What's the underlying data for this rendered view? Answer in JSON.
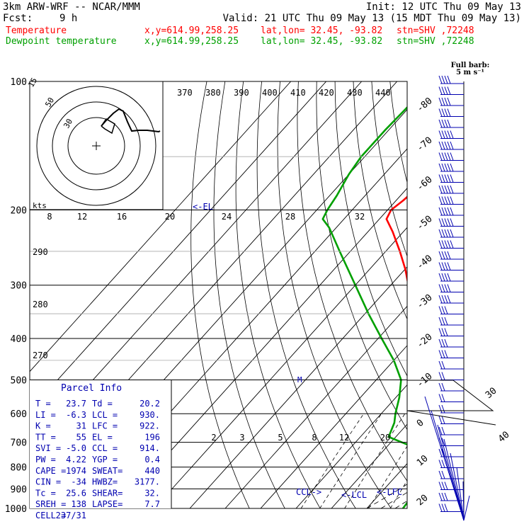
{
  "header": {
    "model": "3km ARW-WRF -- NCAR/MMM",
    "init": "Init: 12 UTC Thu 09 May 13",
    "fcst_label": "Fcst:",
    "fcst_value": "9 h",
    "valid": "Valid: 21 UTC Thu 09 May 13 (15 MDT Thu 09 May 13)",
    "temp_line": {
      "label": "Temperature",
      "xy": "x,y=614.99,258.25",
      "latlon": "lat,lon= 32.45, -93.82",
      "stn": "stn=SHV ,72248"
    },
    "dew_line": {
      "label": "Dewpoint temperature",
      "xy": "x,y=614.99,258.25",
      "latlon": "lat,lon= 32.45, -93.82",
      "stn": "stn=SHV ,72248"
    }
  },
  "colors": {
    "temperature": "#ff0000",
    "dewpoint": "#00a000",
    "blue": "#0000b0",
    "grid": "#000000"
  },
  "chart_data": {
    "type": "line",
    "title": "Skew-T log-P sounding",
    "pressure_levels": [
      100,
      200,
      300,
      400,
      500,
      600,
      700,
      800,
      900,
      1000
    ],
    "isotherm_labels": [
      "-80",
      "-70",
      "-60",
      "-50",
      "-40",
      "-30",
      "-20",
      "-10",
      "0",
      "10",
      "20",
      "30",
      "40"
    ],
    "theta_labels": [
      "370",
      "380",
      "390",
      "400",
      "410",
      "420",
      "430",
      "440"
    ],
    "mixing_ratio_labels": [
      "2",
      "3",
      "5",
      "8",
      "12",
      "20"
    ],
    "dry_adiabat_labels": [
      "290",
      "280",
      "270"
    ],
    "hodograph": {
      "rings": [
        "50",
        "30",
        "15"
      ],
      "kts_label": "kts",
      "speed_labels": [
        "8",
        "12",
        "16",
        "20",
        "24",
        "28",
        "32"
      ]
    },
    "barb_label": "Full barb:",
    "barb_unit": "5 m s⁻¹",
    "annotations": {
      "el": "<-EL",
      "ccl": "CCL->",
      "lcl": "<-LCL",
      "lfc": "<-LFC"
    },
    "series": [
      {
        "name": "Temperature",
        "points": [
          [
            100,
            -60
          ],
          [
            125,
            -58
          ],
          [
            150,
            -57
          ],
          [
            175,
            -57
          ],
          [
            190,
            -58
          ],
          [
            200,
            -59
          ],
          [
            210,
            -58
          ],
          [
            225,
            -53
          ],
          [
            250,
            -46
          ],
          [
            275,
            -40
          ],
          [
            300,
            -35
          ],
          [
            350,
            -27
          ],
          [
            400,
            -18
          ],
          [
            450,
            -12
          ],
          [
            500,
            -7
          ],
          [
            550,
            -3
          ],
          [
            600,
            0
          ],
          [
            650,
            5
          ],
          [
            700,
            10
          ],
          [
            750,
            12
          ],
          [
            800,
            15
          ],
          [
            850,
            19
          ],
          [
            900,
            22
          ],
          [
            950,
            23
          ],
          [
            1000,
            23.7
          ]
        ]
      },
      {
        "name": "Dewpoint temperature",
        "points": [
          [
            100,
            -80
          ],
          [
            130,
            -81
          ],
          [
            150,
            -81
          ],
          [
            165,
            -80
          ],
          [
            185,
            -78
          ],
          [
            200,
            -77
          ],
          [
            210,
            -76
          ],
          [
            220,
            -72
          ],
          [
            250,
            -63
          ],
          [
            300,
            -50
          ],
          [
            350,
            -39
          ],
          [
            400,
            -29
          ],
          [
            450,
            -20
          ],
          [
            500,
            -13
          ],
          [
            550,
            -9
          ],
          [
            600,
            -6
          ],
          [
            630,
            -4
          ],
          [
            680,
            -2
          ],
          [
            720,
            8
          ],
          [
            780,
            16
          ],
          [
            800,
            17
          ],
          [
            850,
            18
          ],
          [
            900,
            19.2
          ],
          [
            950,
            19.8
          ],
          [
            1000,
            20.2
          ]
        ]
      }
    ],
    "parcel_info": {
      "title": "Parcel Info",
      "rows": [
        [
          "T  =",
          "23.7",
          "Td =",
          "20.2"
        ],
        [
          "LI =",
          "-6.3",
          "LCL =",
          "930."
        ],
        [
          "K  =",
          "31",
          "LFC =",
          "922."
        ],
        [
          "TT =",
          "55",
          "EL =",
          "196"
        ],
        [
          "SVI =",
          "-5.0",
          "CCL =",
          "914."
        ],
        [
          "PW =",
          "4.22",
          "YGP =",
          "0.4"
        ],
        [
          "CAPE =",
          "1974",
          "SWEAT=",
          "440"
        ],
        [
          "CIN =",
          "-34",
          "HWBZ=",
          "3177."
        ],
        [
          "Tc =",
          "25.6",
          "SHEAR=",
          "32."
        ],
        [
          "SREH =",
          "138",
          "LAPSE=",
          "7.7"
        ],
        [
          "CELL =",
          "237/31",
          "",
          ""
        ]
      ]
    }
  }
}
